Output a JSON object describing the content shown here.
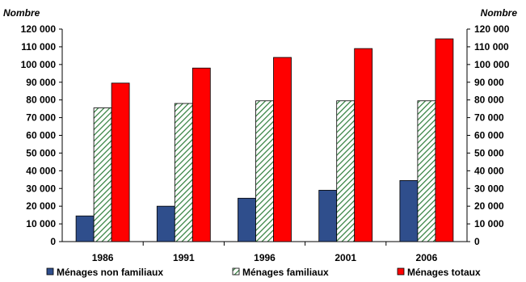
{
  "chart_data": {
    "type": "bar",
    "left_axis_title": "Nombre",
    "right_axis_title": "Nombre",
    "categories": [
      "1986",
      "1991",
      "1996",
      "2001",
      "2006"
    ],
    "ylim": [
      0,
      120000
    ],
    "yticks": [
      "0",
      "10 000",
      "20 000",
      "30 000",
      "40 000",
      "50 000",
      "60 000",
      "70 000",
      "80 000",
      "90 000",
      "100 000",
      "110 000",
      "120 000"
    ],
    "series": [
      {
        "name": "Ménages non familiaux",
        "color": "#2F4E8C",
        "fill": "solid",
        "values": [
          14500,
          20000,
          24500,
          29000,
          34500
        ]
      },
      {
        "name": "Ménages familiaux",
        "color": "#2E7D3A",
        "fill": "hatch",
        "values": [
          75500,
          78000,
          79500,
          79500,
          79500
        ]
      },
      {
        "name": "Ménages totaux",
        "color": "#FF0000",
        "fill": "solid",
        "values": [
          89500,
          98000,
          104000,
          109000,
          114500
        ]
      }
    ],
    "legend_position": "bottom",
    "grid": false
  }
}
